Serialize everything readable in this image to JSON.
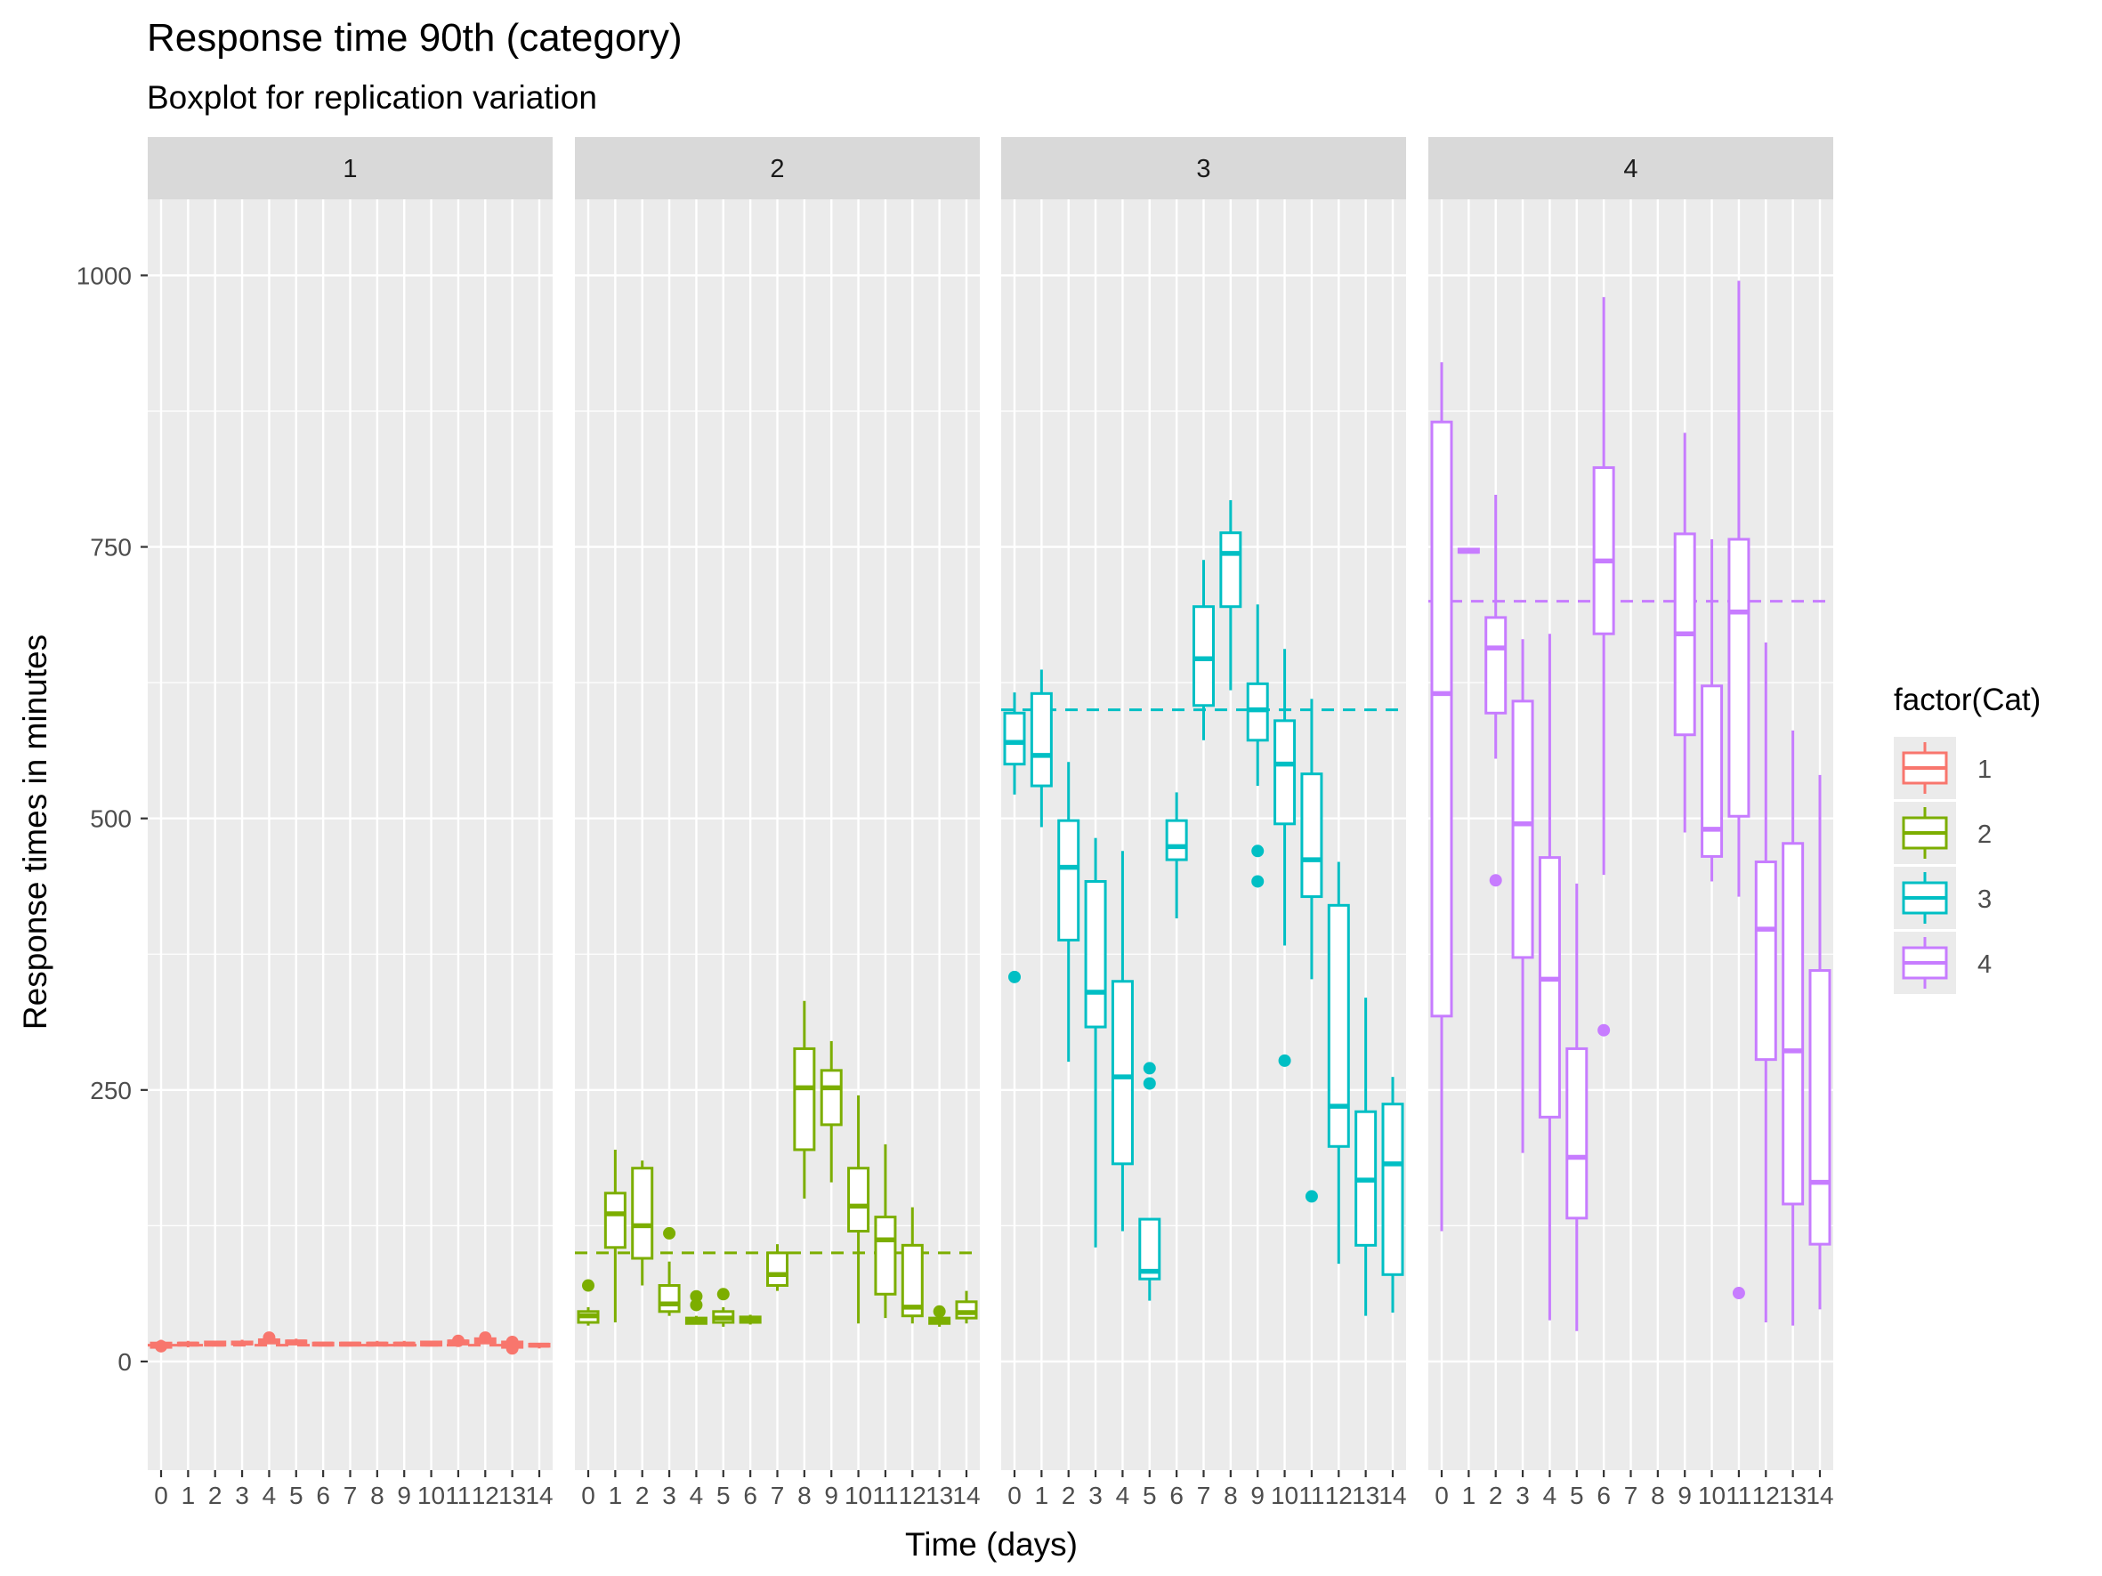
{
  "chart_data": {
    "type": "boxplot",
    "title": "Response time 90th (category)",
    "subtitle": "Boxplot for replication variation",
    "xlabel": "Time (days)",
    "ylabel": "Response times in minutes",
    "ylim": [
      -100,
      1070
    ],
    "y_ticks": [
      0,
      250,
      500,
      750,
      1000
    ],
    "x_ticks": [
      "0",
      "1",
      "2",
      "3",
      "4",
      "5",
      "6",
      "7",
      "8",
      "9",
      "10",
      "11",
      "12",
      "13",
      "14"
    ],
    "legend": {
      "title": "factor(Cat)",
      "position": "right",
      "entries": [
        "1",
        "2",
        "3",
        "4"
      ]
    },
    "colors": {
      "1": "#F8766D",
      "2": "#7CAE00",
      "3": "#00BFC4",
      "4": "#C77CFF",
      "panel_bg": "#EBEBEB",
      "strip_bg": "#D9D9D9",
      "grid": "#FFFFFF"
    },
    "facets": [
      {
        "label": "1",
        "color": "#F8766D",
        "target": 15,
        "boxes": [
          {
            "day": 0,
            "min": 10,
            "q1": 13,
            "median": 15,
            "q3": 17,
            "max": 20,
            "outliers": [
              14
            ]
          },
          {
            "day": 1,
            "min": 13,
            "q1": 15,
            "median": 16,
            "q3": 17,
            "max": 19,
            "outliers": []
          },
          {
            "day": 2,
            "min": 14,
            "q1": 15,
            "median": 16,
            "q3": 18,
            "max": 19,
            "outliers": []
          },
          {
            "day": 3,
            "min": 14,
            "q1": 16,
            "median": 17,
            "q3": 18,
            "max": 20,
            "outliers": []
          },
          {
            "day": 4,
            "min": 16,
            "q1": 17,
            "median": 19,
            "q3": 20,
            "max": 22,
            "outliers": [
              22
            ]
          },
          {
            "day": 5,
            "min": 15,
            "q1": 16,
            "median": 18,
            "q3": 19,
            "max": 21,
            "outliers": []
          },
          {
            "day": 6,
            "min": 14,
            "q1": 15,
            "median": 16,
            "q3": 17,
            "max": 18,
            "outliers": []
          },
          {
            "day": 7,
            "min": 14,
            "q1": 15,
            "median": 16,
            "q3": 17,
            "max": 18,
            "outliers": []
          },
          {
            "day": 8,
            "min": 14,
            "q1": 15,
            "median": 16,
            "q3": 17,
            "max": 19,
            "outliers": []
          },
          {
            "day": 9,
            "min": 14,
            "q1": 15,
            "median": 16,
            "q3": 17,
            "max": 19,
            "outliers": []
          },
          {
            "day": 10,
            "min": 14,
            "q1": 15,
            "median": 16,
            "q3": 18,
            "max": 19,
            "outliers": []
          },
          {
            "day": 11,
            "min": 15,
            "q1": 16,
            "median": 18,
            "q3": 19,
            "max": 21,
            "outliers": [
              19
            ]
          },
          {
            "day": 12,
            "min": 16,
            "q1": 17,
            "median": 19,
            "q3": 21,
            "max": 23,
            "outliers": [
              22
            ]
          },
          {
            "day": 13,
            "min": 10,
            "q1": 13,
            "median": 15,
            "q3": 18,
            "max": 21,
            "outliers": [
              12,
              18
            ]
          },
          {
            "day": 14,
            "min": 12,
            "q1": 14,
            "median": 15,
            "q3": 16,
            "max": 17,
            "outliers": []
          }
        ]
      },
      {
        "label": "2",
        "color": "#7CAE00",
        "target": 100,
        "boxes": [
          {
            "day": 0,
            "min": 33,
            "q1": 36,
            "median": 42,
            "q3": 46,
            "max": 50,
            "outliers": [
              70
            ]
          },
          {
            "day": 1,
            "min": 36,
            "q1": 105,
            "median": 136,
            "q3": 155,
            "max": 195,
            "outliers": []
          },
          {
            "day": 2,
            "min": 70,
            "q1": 95,
            "median": 125,
            "q3": 178,
            "max": 185,
            "outliers": []
          },
          {
            "day": 3,
            "min": 42,
            "q1": 46,
            "median": 53,
            "q3": 70,
            "max": 92,
            "outliers": [
              118
            ]
          },
          {
            "day": 4,
            "min": 34,
            "q1": 35,
            "median": 37,
            "q3": 40,
            "max": 42,
            "outliers": [
              52,
              60
            ]
          },
          {
            "day": 5,
            "min": 32,
            "q1": 36,
            "median": 40,
            "q3": 46,
            "max": 50,
            "outliers": [
              62
            ]
          },
          {
            "day": 6,
            "min": 34,
            "q1": 36,
            "median": 39,
            "q3": 41,
            "max": 43,
            "outliers": []
          },
          {
            "day": 7,
            "min": 65,
            "q1": 70,
            "median": 80,
            "q3": 100,
            "max": 108,
            "outliers": []
          },
          {
            "day": 8,
            "min": 150,
            "q1": 195,
            "median": 252,
            "q3": 288,
            "max": 332,
            "outliers": []
          },
          {
            "day": 9,
            "min": 165,
            "q1": 218,
            "median": 252,
            "q3": 268,
            "max": 295,
            "outliers": []
          },
          {
            "day": 10,
            "min": 35,
            "q1": 120,
            "median": 143,
            "q3": 178,
            "max": 245,
            "outliers": []
          },
          {
            "day": 11,
            "min": 40,
            "q1": 62,
            "median": 112,
            "q3": 133,
            "max": 200,
            "outliers": []
          },
          {
            "day": 12,
            "min": 35,
            "q1": 42,
            "median": 50,
            "q3": 107,
            "max": 142,
            "outliers": []
          },
          {
            "day": 13,
            "min": 32,
            "q1": 35,
            "median": 37,
            "q3": 40,
            "max": 42,
            "outliers": [
              46
            ]
          },
          {
            "day": 14,
            "min": 35,
            "q1": 40,
            "median": 45,
            "q3": 55,
            "max": 65,
            "outliers": []
          }
        ]
      },
      {
        "label": "3",
        "color": "#00BFC4",
        "target": 600,
        "boxes": [
          {
            "day": 0,
            "min": 522,
            "q1": 550,
            "median": 570,
            "q3": 597,
            "max": 616,
            "outliers": [
              354
            ]
          },
          {
            "day": 1,
            "min": 492,
            "q1": 530,
            "median": 558,
            "q3": 615,
            "max": 637,
            "outliers": []
          },
          {
            "day": 2,
            "min": 276,
            "q1": 388,
            "median": 455,
            "q3": 498,
            "max": 552,
            "outliers": []
          },
          {
            "day": 3,
            "min": 105,
            "q1": 308,
            "median": 340,
            "q3": 442,
            "max": 482,
            "outliers": []
          },
          {
            "day": 4,
            "min": 120,
            "q1": 182,
            "median": 262,
            "q3": 350,
            "max": 470,
            "outliers": []
          },
          {
            "day": 5,
            "min": 56,
            "q1": 76,
            "median": 83,
            "q3": 131,
            "max": 131,
            "outliers": [
              256,
              270
            ]
          },
          {
            "day": 6,
            "min": 408,
            "q1": 462,
            "median": 474,
            "q3": 498,
            "max": 524,
            "outliers": []
          },
          {
            "day": 7,
            "min": 572,
            "q1": 604,
            "median": 647,
            "q3": 695,
            "max": 738,
            "outliers": []
          },
          {
            "day": 8,
            "min": 618,
            "q1": 695,
            "median": 744,
            "q3": 763,
            "max": 793,
            "outliers": []
          },
          {
            "day": 9,
            "min": 530,
            "q1": 572,
            "median": 600,
            "q3": 624,
            "max": 697,
            "outliers": [
              442,
              470
            ]
          },
          {
            "day": 10,
            "min": 383,
            "q1": 495,
            "median": 550,
            "q3": 590,
            "max": 656,
            "outliers": [
              277
            ]
          },
          {
            "day": 11,
            "min": 352,
            "q1": 428,
            "median": 462,
            "q3": 541,
            "max": 610,
            "outliers": [
              152
            ]
          },
          {
            "day": 12,
            "min": 90,
            "q1": 198,
            "median": 235,
            "q3": 420,
            "max": 460,
            "outliers": []
          },
          {
            "day": 13,
            "min": 42,
            "q1": 107,
            "median": 167,
            "q3": 230,
            "max": 335,
            "outliers": []
          },
          {
            "day": 14,
            "min": 45,
            "q1": 80,
            "median": 182,
            "q3": 237,
            "max": 262,
            "outliers": []
          }
        ]
      },
      {
        "label": "4",
        "color": "#C77CFF",
        "target": 700,
        "boxes": [
          {
            "day": 0,
            "min": 120,
            "q1": 318,
            "median": 615,
            "q3": 865,
            "max": 920,
            "outliers": []
          },
          {
            "day": 1,
            "min": 745,
            "q1": 745,
            "median": 746,
            "q3": 748,
            "max": 748,
            "outliers": []
          },
          {
            "day": 2,
            "min": 555,
            "q1": 597,
            "median": 657,
            "q3": 685,
            "max": 798,
            "outliers": [
              443
            ]
          },
          {
            "day": 3,
            "min": 192,
            "q1": 372,
            "median": 495,
            "q3": 608,
            "max": 665,
            "outliers": []
          },
          {
            "day": 4,
            "min": 38,
            "q1": 225,
            "median": 352,
            "q3": 464,
            "max": 670,
            "outliers": []
          },
          {
            "day": 5,
            "min": 28,
            "q1": 132,
            "median": 188,
            "q3": 288,
            "max": 440,
            "outliers": []
          },
          {
            "day": 6,
            "min": 448,
            "q1": 670,
            "median": 737,
            "q3": 823,
            "max": 980,
            "outliers": [
              305
            ]
          },
          {
            "day": 9,
            "min": 487,
            "q1": 577,
            "median": 670,
            "q3": 762,
            "max": 855,
            "outliers": []
          },
          {
            "day": 10,
            "min": 442,
            "q1": 465,
            "median": 490,
            "q3": 622,
            "max": 757,
            "outliers": []
          },
          {
            "day": 11,
            "min": 428,
            "q1": 502,
            "median": 690,
            "q3": 757,
            "max": 995,
            "outliers": [
              63
            ]
          },
          {
            "day": 12,
            "min": 36,
            "q1": 278,
            "median": 398,
            "q3": 460,
            "max": 662,
            "outliers": []
          },
          {
            "day": 13,
            "min": 33,
            "q1": 145,
            "median": 286,
            "q3": 477,
            "max": 581,
            "outliers": []
          },
          {
            "day": 14,
            "min": 48,
            "q1": 108,
            "median": 165,
            "q3": 360,
            "max": 540,
            "outliers": []
          }
        ]
      }
    ]
  }
}
